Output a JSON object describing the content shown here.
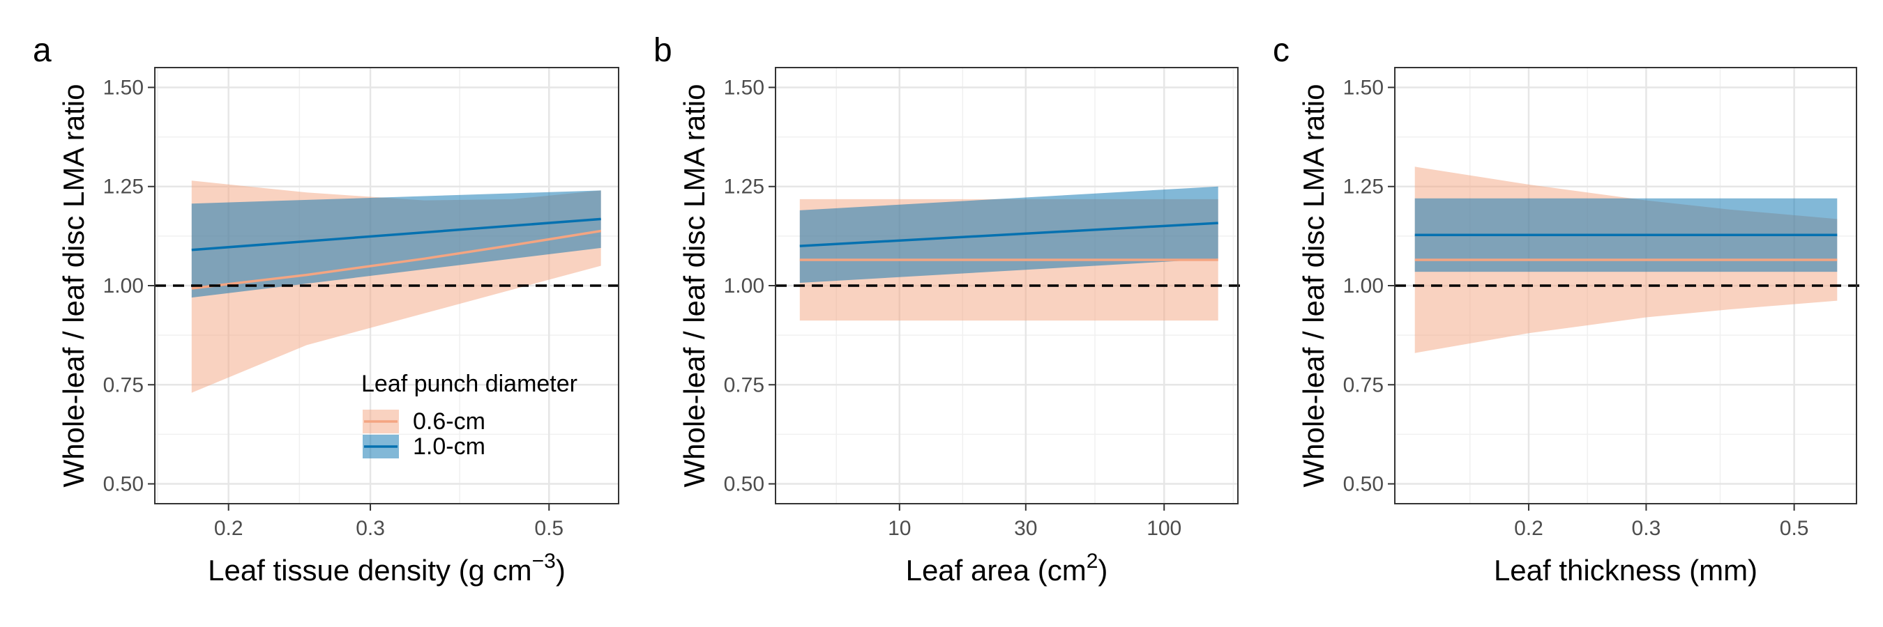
{
  "chart_data": [
    {
      "panel_label": "a",
      "type": "line",
      "x_scale": "log",
      "xlabel": "Leaf tissue density (g cm",
      "xlabel_sup": "−3",
      "xlabel_end": ")",
      "ylabel": "Whole-leaf / leaf disc LMA ratio",
      "xlim": [
        0.162,
        0.61
      ],
      "ylim": [
        0.45,
        1.55
      ],
      "x_ticks": [
        0.2,
        0.3,
        0.5
      ],
      "x_tick_labels": [
        "0.2",
        "0.3",
        "0.5"
      ],
      "y_ticks": [
        0.5,
        0.75,
        1.0,
        1.25,
        1.5
      ],
      "y_tick_labels": [
        "0.50",
        "0.75",
        "1.00",
        "1.25",
        "1.50"
      ],
      "reference_line": 1.0,
      "grid": true,
      "legend": {
        "title": "Leaf punch diameter",
        "position": "bottom-right",
        "entries": [
          "0.6-cm",
          "1.0-cm"
        ]
      },
      "series": [
        {
          "name": "0.6-cm",
          "color": "#f4a582",
          "x": [
            0.18,
            0.25,
            0.35,
            0.45,
            0.58
          ],
          "y": [
            0.993,
            1.027,
            1.068,
            1.102,
            1.138
          ],
          "lower": [
            0.73,
            0.85,
            0.93,
            0.99,
            1.05
          ],
          "upper": [
            1.265,
            1.235,
            1.215,
            1.218,
            1.24
          ]
        },
        {
          "name": "1.0-cm",
          "color": "#0571b0",
          "x": [
            0.18,
            0.58
          ],
          "y": [
            1.09,
            1.168
          ],
          "lower": [
            0.97,
            1.095
          ],
          "upper": [
            1.207,
            1.24
          ]
        }
      ]
    },
    {
      "panel_label": "b",
      "type": "line",
      "x_scale": "log",
      "xlabel": "Leaf area (cm",
      "xlabel_sup": "2",
      "xlabel_end": ")",
      "ylabel": "Whole-leaf / leaf disc LMA ratio",
      "xlim": [
        3.4,
        190
      ],
      "ylim": [
        0.45,
        1.55
      ],
      "x_ticks": [
        10,
        30,
        100
      ],
      "x_tick_labels": [
        "10",
        "30",
        "100"
      ],
      "y_ticks": [
        0.5,
        0.75,
        1.0,
        1.25,
        1.5
      ],
      "y_tick_labels": [
        "0.50",
        "0.75",
        "1.00",
        "1.25",
        "1.50"
      ],
      "reference_line": 1.0,
      "grid": true,
      "series": [
        {
          "name": "0.6-cm",
          "color": "#f4a582",
          "x": [
            4.2,
            160
          ],
          "y": [
            1.065,
            1.065
          ],
          "lower": [
            0.912,
            0.912
          ],
          "upper": [
            1.218,
            1.218
          ]
        },
        {
          "name": "1.0-cm",
          "color": "#0571b0",
          "x": [
            4.2,
            160
          ],
          "y": [
            1.1,
            1.158
          ],
          "lower": [
            1.007,
            1.068
          ],
          "upper": [
            1.19,
            1.25
          ]
        }
      ]
    },
    {
      "panel_label": "c",
      "type": "line",
      "x_scale": "log",
      "xlabel": "Leaf thickness (mm)",
      "xlabel_sup": "",
      "xlabel_end": "",
      "ylabel": "Whole-leaf / leaf disc LMA ratio",
      "xlim": [
        0.126,
        0.62
      ],
      "ylim": [
        0.45,
        1.55
      ],
      "x_ticks": [
        0.2,
        0.3,
        0.5
      ],
      "x_tick_labels": [
        "0.2",
        "0.3",
        "0.5"
      ],
      "y_ticks": [
        0.5,
        0.75,
        1.0,
        1.25,
        1.5
      ],
      "y_tick_labels": [
        "0.50",
        "0.75",
        "1.00",
        "1.25",
        "1.50"
      ],
      "reference_line": 1.0,
      "grid": true,
      "series": [
        {
          "name": "0.6-cm",
          "color": "#f4a582",
          "x": [
            0.135,
            0.2,
            0.3,
            0.4,
            0.58
          ],
          "y": [
            1.065,
            1.065,
            1.065,
            1.065,
            1.065
          ],
          "lower": [
            0.83,
            0.88,
            0.92,
            0.94,
            0.962
          ],
          "upper": [
            1.3,
            1.255,
            1.215,
            1.192,
            1.168
          ]
        },
        {
          "name": "1.0-cm",
          "color": "#0571b0",
          "x": [
            0.135,
            0.58
          ],
          "y": [
            1.128,
            1.128
          ],
          "lower": [
            1.035,
            1.035
          ],
          "upper": [
            1.22,
            1.22
          ]
        }
      ]
    }
  ]
}
